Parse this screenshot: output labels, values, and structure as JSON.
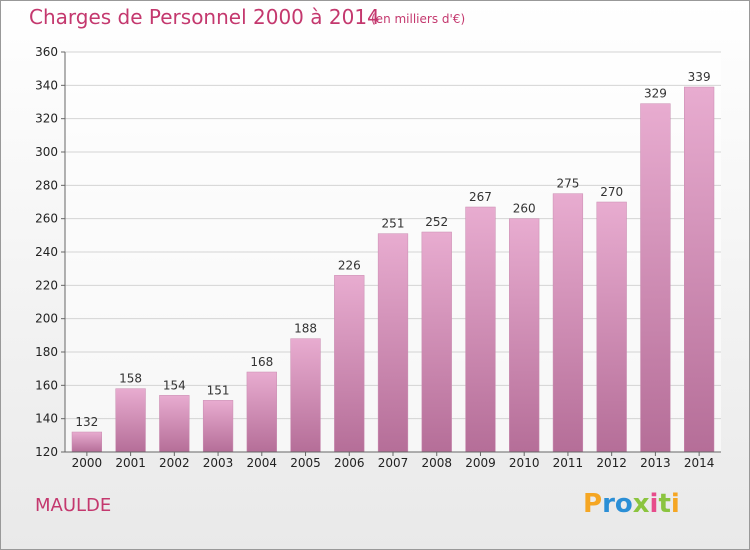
{
  "title": "Charges de Personnel 2000 à 2014",
  "unit_note": "(en milliers d'€)",
  "commune": "MAULDE",
  "logo": {
    "letters": [
      "P",
      "r",
      "o",
      "x",
      "i",
      "t",
      "i"
    ],
    "colors": [
      "#f5a623",
      "#2b8fd6",
      "#2b8fd6",
      "#8bc43f",
      "#e74c8b",
      "#8bc43f",
      "#f5a623"
    ]
  },
  "colors": {
    "bar_top": "#e8acd0",
    "bar_bottom": "#b56e98",
    "accent": "#c4386e"
  },
  "chart_data": {
    "type": "bar",
    "title": "Charges de Personnel 2000 à 2014",
    "xlabel": "",
    "ylabel": "",
    "categories": [
      "2000",
      "2001",
      "2002",
      "2003",
      "2004",
      "2005",
      "2006",
      "2007",
      "2008",
      "2009",
      "2010",
      "2011",
      "2012",
      "2013",
      "2014"
    ],
    "values": [
      132,
      158,
      154,
      151,
      168,
      188,
      226,
      251,
      252,
      267,
      260,
      275,
      270,
      329,
      339
    ],
    "ylim": [
      120,
      360
    ],
    "yticks": [
      120,
      140,
      160,
      180,
      200,
      220,
      240,
      260,
      280,
      300,
      320,
      340,
      360
    ],
    "grid": true,
    "legend": "none"
  }
}
